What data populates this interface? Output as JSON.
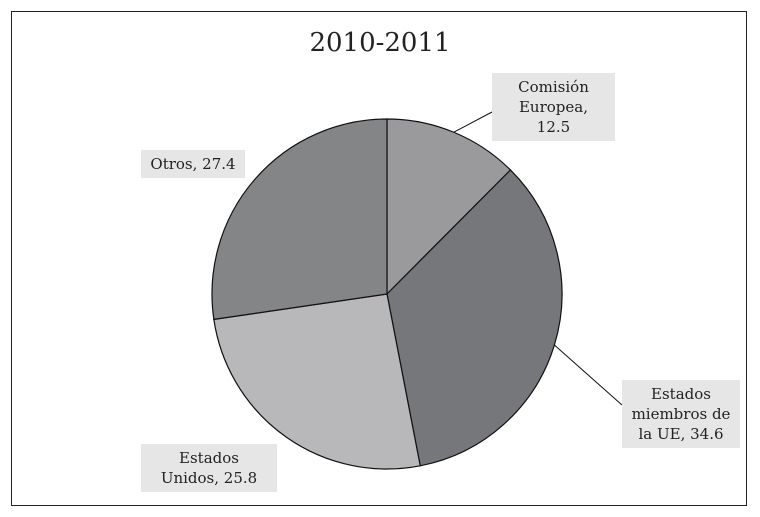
{
  "chart_data": {
    "type": "pie",
    "title": "2010-2011",
    "slices": [
      {
        "label": "Comisión Europea, 12.5",
        "value": 12.5,
        "color": "#9a9a9c"
      },
      {
        "label": "Estados miembros de la UE, 34.6",
        "value": 34.6,
        "color": "#76777a"
      },
      {
        "label": "Estados Unidos, 25.8",
        "value": 25.8,
        "color": "#b8b8ba"
      },
      {
        "label": "Otros, 27.4",
        "value": 27.4,
        "color": "#848587"
      }
    ]
  }
}
